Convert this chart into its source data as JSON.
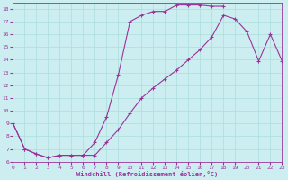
{
  "curve1_x": [
    0,
    1,
    2,
    3,
    4,
    5,
    6,
    7,
    8,
    9,
    10,
    11,
    12,
    13,
    14,
    15,
    16,
    17,
    18
  ],
  "curve1_y": [
    9.0,
    7.0,
    6.6,
    6.3,
    6.5,
    6.5,
    6.5,
    7.5,
    9.5,
    12.8,
    17.0,
    17.5,
    17.8,
    17.8,
    18.3,
    18.3,
    18.3,
    18.2,
    18.2
  ],
  "curve2_x": [
    0,
    1,
    2,
    3,
    4,
    5,
    6,
    7,
    8,
    9,
    10,
    11,
    12,
    13,
    14,
    15,
    16,
    17,
    18,
    19,
    20,
    21,
    22,
    23
  ],
  "curve2_y": [
    9.0,
    7.0,
    6.6,
    6.3,
    6.5,
    6.5,
    6.5,
    6.5,
    7.5,
    8.5,
    9.8,
    11.0,
    11.8,
    12.5,
    13.2,
    14.0,
    14.8,
    15.8,
    17.5,
    17.2,
    16.2,
    13.9,
    16.0,
    13.9
  ],
  "line_color": "#993399",
  "bg_color": "#cceef0",
  "grid_color": "#aadddd",
  "xlabel": "Windchill (Refroidissement éolien,°C)",
  "xlim": [
    0,
    23
  ],
  "ylim": [
    6,
    18.5
  ],
  "xticks": [
    0,
    1,
    2,
    3,
    4,
    5,
    6,
    7,
    8,
    9,
    10,
    11,
    12,
    13,
    14,
    15,
    16,
    17,
    18,
    19,
    20,
    21,
    22,
    23
  ],
  "yticks": [
    6,
    7,
    8,
    9,
    10,
    11,
    12,
    13,
    14,
    15,
    16,
    17,
    18
  ]
}
